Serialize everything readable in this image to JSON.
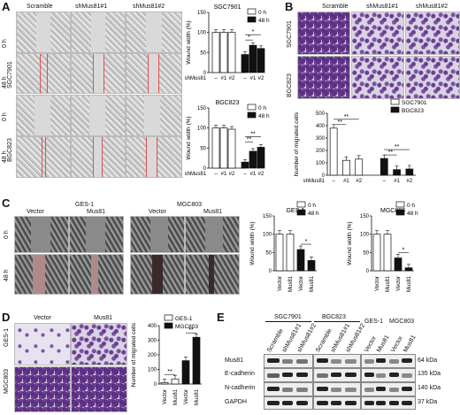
{
  "panels": {
    "A": "A",
    "B": "B",
    "C": "C",
    "D": "D",
    "E": "E"
  },
  "A": {
    "cols": [
      "Scramble",
      "shMus81#1",
      "shMus81#2"
    ],
    "rows_top": [
      "0 h",
      "48 h"
    ],
    "group_top": "SGC7901",
    "rows_bottom": [
      "0 h",
      "48 h"
    ],
    "group_bottom": "BGC823"
  },
  "B": {
    "cols": [
      "Scramble",
      "shMus81#1",
      "shMus81#2"
    ],
    "rows": [
      "SGC7901",
      "BGC823"
    ]
  },
  "C": {
    "col_groups": [
      "GES-1",
      "MGC803"
    ],
    "cols": [
      "Vector",
      "Mus81",
      "Vector",
      "Mus81"
    ],
    "rows": [
      "0 h",
      "48 h"
    ]
  },
  "D": {
    "cols": [
      "Vector",
      "Mus81"
    ],
    "rows": [
      "GES-1",
      "MGC803"
    ]
  },
  "E": {
    "groups": [
      "SGC7901",
      "BGC823",
      "GES-1",
      "MGC803"
    ],
    "lanes": [
      "Scramble",
      "shMus81#1",
      "shMus81#2",
      "Scramble",
      "shMus81#1",
      "shMus81#2",
      "Vector",
      "Mus81",
      "Vector",
      "Mus81"
    ],
    "proteins": [
      "Mus81",
      "E-cadherin",
      "N-cadherin",
      "GAPDH"
    ],
    "sizes": [
      "64 kDa",
      "135 kDa",
      "140 kDa",
      "37 kDa"
    ]
  },
  "colors": {
    "h0": "#ffffff",
    "h48": "#111111",
    "sgc": "#ffffff",
    "bgc": "#111111"
  },
  "chart_data": [
    {
      "id": "A-SGC7901",
      "type": "bar",
      "title": "SGC7901",
      "ylabel": "Wound width (%)",
      "ylim": [
        0,
        150
      ],
      "yticks": [
        "0",
        "50",
        "100",
        "150"
      ],
      "xlabel": "shMus81",
      "categories": [
        "–",
        "#1",
        "#2"
      ],
      "series": [
        {
          "name": "0 h",
          "values": [
            100,
            100,
            100
          ]
        },
        {
          "name": "48 h",
          "values": [
            45,
            68,
            60
          ]
        }
      ],
      "sig": [
        {
          "label": "*"
        },
        {
          "label": "*"
        }
      ]
    },
    {
      "id": "A-BGC823",
      "type": "bar",
      "title": "BGC823",
      "ylabel": "Wound width (%)",
      "ylim": [
        0,
        150
      ],
      "yticks": [
        "0",
        "50",
        "100",
        "150"
      ],
      "xlabel": "shMus81",
      "categories": [
        "–",
        "#1",
        "#2"
      ],
      "series": [
        {
          "name": "0 h",
          "values": [
            100,
            100,
            97
          ]
        },
        {
          "name": "48 h",
          "values": [
            15,
            42,
            52
          ]
        }
      ],
      "sig": [
        {
          "label": "**"
        },
        {
          "label": "**"
        }
      ]
    },
    {
      "id": "B",
      "type": "bar",
      "title": "",
      "ylabel": "Number of migrated cells",
      "ylim": [
        0,
        500
      ],
      "yticks": [
        "0",
        "100",
        "200",
        "300",
        "400",
        "500"
      ],
      "xlabel": "shMus81",
      "categories": [
        "–",
        "#1",
        "#2",
        "–",
        "#1",
        "#2"
      ],
      "series": [
        {
          "name": "SGC7901",
          "values": [
            380,
            120,
            130,
            null,
            null,
            null
          ]
        },
        {
          "name": "BGC823",
          "values": [
            null,
            null,
            null,
            135,
            45,
            50
          ]
        }
      ],
      "sig": [
        {
          "label": "**"
        },
        {
          "label": "**"
        },
        {
          "label": "**"
        },
        {
          "label": "**"
        }
      ]
    },
    {
      "id": "C-GES-1",
      "type": "bar",
      "title": "GES-1",
      "ylabel": "Wound width (%)",
      "ylim": [
        0,
        150
      ],
      "yticks": [
        "0",
        "50",
        "100",
        "150"
      ],
      "categories": [
        "Vector",
        "Mus81",
        "Vector",
        "Mus81"
      ],
      "series": [
        {
          "name": "0 h",
          "values": [
            100,
            100,
            null,
            null
          ]
        },
        {
          "name": "48 h",
          "values": [
            null,
            null,
            58,
            28
          ]
        }
      ],
      "sig": [
        {
          "label": "*"
        }
      ]
    },
    {
      "id": "C-MGC803",
      "type": "bar",
      "title": "MGC803",
      "ylabel": "Wound width (%)",
      "ylim": [
        0,
        150
      ],
      "yticks": [
        "0",
        "50",
        "100",
        "150"
      ],
      "categories": [
        "Vector",
        "Mus81",
        "Vector",
        "Mus81"
      ],
      "series": [
        {
          "name": "0 h",
          "values": [
            100,
            100,
            null,
            null
          ]
        },
        {
          "name": "48 h",
          "values": [
            null,
            null,
            35,
            8
          ]
        }
      ],
      "sig": [
        {
          "label": "*"
        }
      ]
    },
    {
      "id": "D",
      "type": "bar",
      "title": "",
      "ylabel": "Number of migrated cells",
      "ylim": [
        0,
        400
      ],
      "yticks": [
        "0",
        "100",
        "200",
        "300",
        "400"
      ],
      "categories": [
        "Vector",
        "Mus81",
        "Vector",
        "Mus81"
      ],
      "series": [
        {
          "name": "GES-1",
          "values": [
            10,
            35,
            null,
            null
          ]
        },
        {
          "name": "MGC803",
          "values": [
            null,
            null,
            160,
            320
          ]
        }
      ],
      "sig": [
        {
          "label": "**"
        },
        {
          "label": "**"
        }
      ]
    }
  ]
}
